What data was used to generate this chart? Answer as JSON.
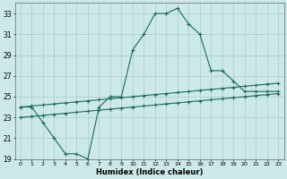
{
  "xlabel": "Humidex (Indice chaleur)",
  "bg_color": "#cce8e8",
  "line_color": "#1a6b5a",
  "grid_color": "#aacccc",
  "x_min": -0.5,
  "x_max": 23.5,
  "y_min": 19,
  "y_max": 34,
  "y_ticks": [
    19,
    21,
    23,
    25,
    27,
    29,
    31,
    33
  ],
  "x_ticks": [
    0,
    1,
    2,
    3,
    4,
    5,
    6,
    7,
    8,
    9,
    10,
    11,
    12,
    13,
    14,
    15,
    16,
    17,
    18,
    19,
    20,
    21,
    22,
    23
  ],
  "series1_x": [
    0,
    1,
    2,
    3,
    4,
    5,
    6,
    7,
    8,
    9,
    10,
    11,
    12,
    13,
    14,
    15,
    16,
    17,
    18,
    19,
    20,
    21,
    22,
    23
  ],
  "series1_y": [
    24.0,
    24.0,
    22.5,
    21.0,
    19.5,
    19.5,
    19.0,
    24.0,
    25.0,
    25.0,
    29.5,
    31.0,
    33.0,
    33.0,
    33.5,
    32.0,
    31.0,
    27.5,
    27.5,
    26.5,
    25.5,
    25.5,
    25.5,
    25.5
  ],
  "series2_x": [
    0,
    1,
    2,
    3,
    4,
    5,
    6,
    7,
    8,
    9,
    10,
    11,
    12,
    13,
    14,
    15,
    16,
    17,
    18,
    19,
    20,
    21,
    22,
    23
  ],
  "series2_y": [
    24.0,
    24.1,
    24.2,
    24.3,
    24.4,
    24.5,
    24.6,
    24.7,
    24.8,
    24.9,
    25.0,
    25.1,
    25.2,
    25.3,
    25.4,
    25.5,
    25.6,
    25.7,
    25.8,
    25.9,
    26.0,
    26.1,
    26.2,
    26.3
  ],
  "series3_x": [
    0,
    1,
    2,
    3,
    4,
    5,
    6,
    7,
    8,
    9,
    10,
    11,
    12,
    13,
    14,
    15,
    16,
    17,
    18,
    19,
    20,
    21,
    22,
    23
  ],
  "series3_y": [
    23.0,
    23.1,
    23.2,
    23.3,
    23.4,
    23.5,
    23.6,
    23.7,
    23.8,
    23.9,
    24.0,
    24.1,
    24.2,
    24.3,
    24.4,
    24.5,
    24.6,
    24.7,
    24.8,
    24.9,
    25.0,
    25.1,
    25.2,
    25.3
  ]
}
